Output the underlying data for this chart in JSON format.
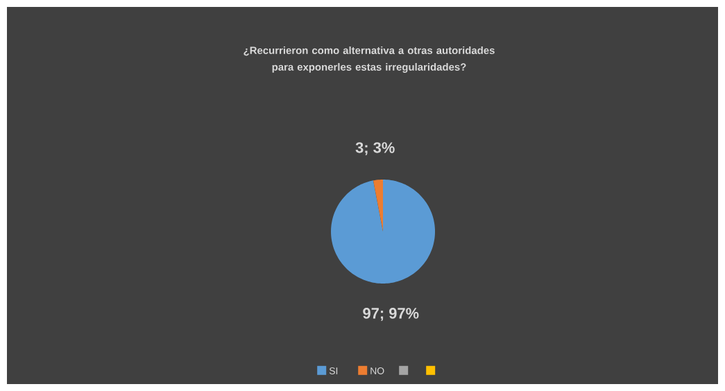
{
  "chart_data": {
    "type": "pie",
    "title": "¿Recurrieron como alternativa a otras autoridades para exponerles estas irregularidades?",
    "categories": [
      "SI",
      "NO",
      null,
      null
    ],
    "values": [
      97,
      3,
      0,
      0
    ],
    "colors": [
      "#5b9bd5",
      "#ed7d31",
      "#a5a5a5",
      "#ffc000"
    ],
    "value_labels": [
      "97; 97%",
      "3; 3%",
      null,
      null
    ],
    "legend": "bottom"
  }
}
